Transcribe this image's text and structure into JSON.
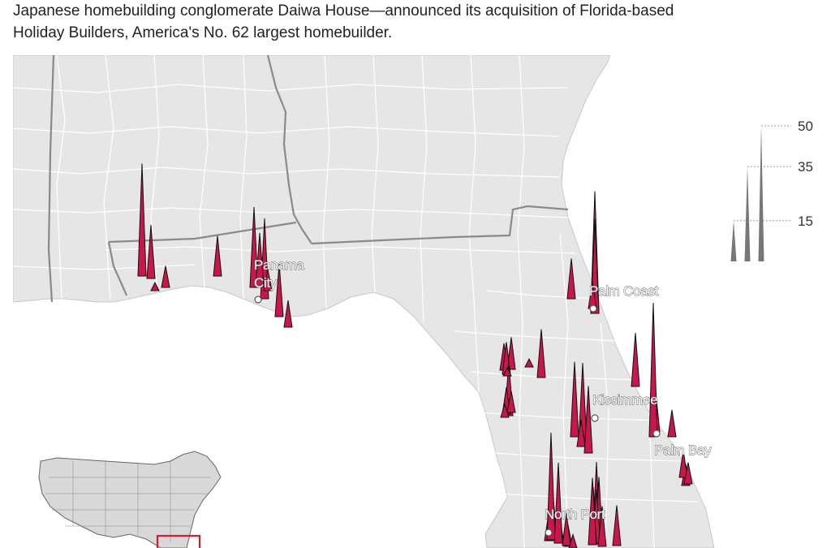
{
  "caption": {
    "line1": "Japanese homebuilding conglomerate Daiwa House—announced its acquisition of Florida-based",
    "line2": "Holiday Builders, America's No. 62 largest homebuilder."
  },
  "cities": [
    {
      "name_line1": "Panama",
      "name_line2": "City"
    },
    {
      "name_line1": "Palm Coast"
    },
    {
      "name_line1": "Kissimmee"
    },
    {
      "name_line1": "Palm Bay"
    },
    {
      "name_line1": "North Port"
    }
  ],
  "legend": {
    "values": [
      15,
      35,
      50
    ],
    "labels": [
      "15",
      "35",
      "50"
    ]
  },
  "spike_values": [
    42,
    20,
    8,
    15,
    3,
    30,
    30,
    20,
    10,
    8,
    20,
    12,
    10,
    3,
    18,
    12,
    20,
    10,
    8,
    5,
    3,
    45,
    35,
    15,
    10,
    25,
    20,
    15,
    10,
    8,
    50,
    28,
    30,
    25,
    10,
    15,
    10,
    8,
    8,
    5,
    30,
    25,
    20,
    15,
    12,
    10,
    8,
    40,
    30,
    20,
    25,
    15
  ],
  "colors": {
    "spike_fill": "#c8174a",
    "spike_stroke": "#111111",
    "land": "#e6e6e6",
    "water": "#ffffff",
    "county_border": "#ffffff",
    "state_border": "#8a8a8a",
    "inset_box": "#d0202e"
  }
}
